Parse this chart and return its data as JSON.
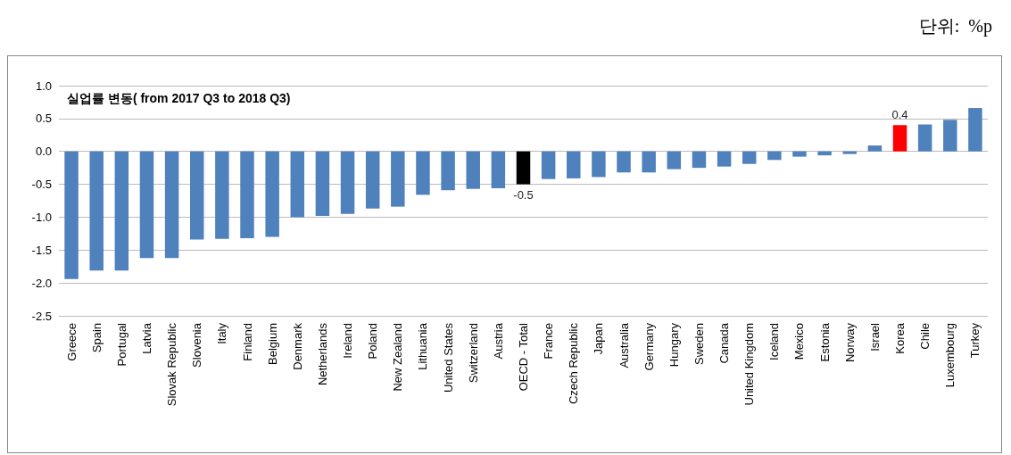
{
  "chart_data": {
    "type": "bar",
    "title": "실업률 변동( from 2017 Q3 to 2018 Q3)",
    "annotations": [
      "단위:  %p"
    ],
    "categories": [
      "Greece",
      "Spain",
      "Portugal",
      "Latvia",
      "Slovak Republic",
      "Slovenia",
      "Italy",
      "Finland",
      "Belgium",
      "Denmark",
      "Netherlands",
      "Ireland",
      "Poland",
      "New Zealand",
      "Lithuania",
      "United States",
      "Switzerland",
      "Austria",
      "OECD - Total",
      "France",
      "Czech Republic",
      "Japan",
      "Australia",
      "Germany",
      "Hungary",
      "Sweden",
      "Canada",
      "United Kingdom",
      "Iceland",
      "Mexico",
      "Estonia",
      "Norway",
      "Israel",
      "Korea",
      "Chile",
      "Luxembourg",
      "Turkey"
    ],
    "values": [
      -1.94,
      -1.81,
      -1.81,
      -1.62,
      -1.62,
      -1.34,
      -1.33,
      -1.32,
      -1.3,
      -1.0,
      -0.98,
      -0.95,
      -0.87,
      -0.84,
      -0.66,
      -0.59,
      -0.57,
      -0.56,
      -0.5,
      -0.42,
      -0.41,
      -0.39,
      -0.32,
      -0.32,
      -0.27,
      -0.25,
      -0.23,
      -0.19,
      -0.13,
      -0.08,
      -0.06,
      -0.04,
      0.09,
      0.4,
      0.41,
      0.48,
      0.66
    ],
    "colors": [
      "#4f81bd",
      "#4f81bd",
      "#4f81bd",
      "#4f81bd",
      "#4f81bd",
      "#4f81bd",
      "#4f81bd",
      "#4f81bd",
      "#4f81bd",
      "#4f81bd",
      "#4f81bd",
      "#4f81bd",
      "#4f81bd",
      "#4f81bd",
      "#4f81bd",
      "#4f81bd",
      "#4f81bd",
      "#4f81bd",
      "#000000",
      "#4f81bd",
      "#4f81bd",
      "#4f81bd",
      "#4f81bd",
      "#4f81bd",
      "#4f81bd",
      "#4f81bd",
      "#4f81bd",
      "#4f81bd",
      "#4f81bd",
      "#4f81bd",
      "#4f81bd",
      "#4f81bd",
      "#4f81bd",
      "#ff0000",
      "#4f81bd",
      "#4f81bd",
      "#4f81bd"
    ],
    "value_labels": [
      null,
      null,
      null,
      null,
      null,
      null,
      null,
      null,
      null,
      null,
      null,
      null,
      null,
      null,
      null,
      null,
      null,
      null,
      "-0.5",
      null,
      null,
      null,
      null,
      null,
      null,
      null,
      null,
      null,
      null,
      null,
      null,
      null,
      null,
      "0.4",
      null,
      null,
      null
    ],
    "ylim": [
      -2.5,
      1.0
    ],
    "yticks": [
      {
        "value": -2.5,
        "label": "-2.5"
      },
      {
        "value": -2,
        "label": "-2.0"
      },
      {
        "value": -1.5,
        "label": "-1.5"
      },
      {
        "value": -1,
        "label": "-1.0"
      },
      {
        "value": -0.5,
        "label": "-0.5"
      },
      {
        "value": 0,
        "label": "0.0"
      },
      {
        "value": 0.5,
        "label": "0.5"
      },
      {
        "value": 1,
        "label": "1.0"
      }
    ],
    "grid": "y"
  }
}
